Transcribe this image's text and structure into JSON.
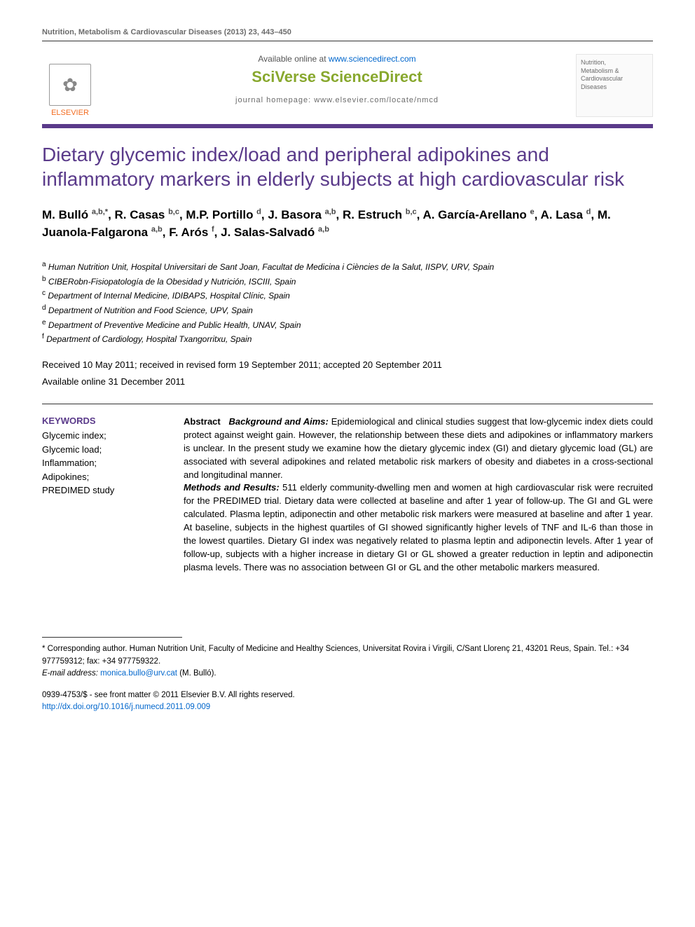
{
  "colors": {
    "accent_purple": "#5a3a8a",
    "accent_green": "#88a82e",
    "accent_orange": "#f36c21",
    "link_blue": "#0066cc",
    "body_text": "#000000",
    "muted_text": "#6b6b6b",
    "rule": "#333333"
  },
  "typography": {
    "body_family": "Trebuchet MS",
    "title_size_pt": 22,
    "author_size_pt": 13,
    "body_size_pt": 10
  },
  "running_header": "Nutrition, Metabolism & Cardiovascular Diseases (2013) 23, 443–450",
  "masthead": {
    "publisher_label": "ELSEVIER",
    "available_text_prefix": "Available online at ",
    "available_url": "www.sciencedirect.com",
    "brand": "SciVerse ScienceDirect",
    "homepage_label": "journal homepage: www.elsevier.com/locate/nmcd",
    "journal_name_lines": "Nutrition,\nMetabolism &\nCardiovascular Diseases"
  },
  "article": {
    "title": "Dietary glycemic index/load and peripheral adipokines and inflammatory markers in elderly subjects at high cardiovascular risk",
    "authors_html": "M. Bulló <sup>a,b,*</sup>, R. Casas <sup>b,c</sup>, M.P. Portillo <sup>d</sup>, J. Basora <sup>a,b</sup>, R. Estruch <sup>b,c</sup>, A. García-Arellano <sup>e</sup>, A. Lasa <sup>d</sup>, M. Juanola-Falgarona <sup>a,b</sup>, F. Arós <sup>f</sup>, J. Salas-Salvadó <sup>a,b</sup>",
    "affiliations": [
      {
        "sup": "a",
        "text": "Human Nutrition Unit, Hospital Universitari de Sant Joan, Facultat de Medicina i Ciències de la Salut, IISPV, URV, Spain"
      },
      {
        "sup": "b",
        "text": "CIBERobn-Fisiopatología de la Obesidad y Nutrición, ISCIII, Spain"
      },
      {
        "sup": "c",
        "text": "Department of Internal Medicine, IDIBAPS, Hospital Clínic, Spain"
      },
      {
        "sup": "d",
        "text": "Department of Nutrition and Food Science, UPV, Spain"
      },
      {
        "sup": "e",
        "text": "Department of Preventive Medicine and Public Health, UNAV, Spain"
      },
      {
        "sup": "f",
        "text": "Department of Cardiology, Hospital Txangorritxu, Spain"
      }
    ],
    "history_line_1": "Received 10 May 2011; received in revised form 19 September 2011; accepted 20 September 2011",
    "history_line_2": "Available online 31 December 2011",
    "keywords_heading": "KEYWORDS",
    "keywords": [
      "Glycemic index;",
      "Glycemic load;",
      "Inflammation;",
      "Adipokines;",
      "PREDIMED study"
    ],
    "abstract": {
      "label": "Abstract",
      "background_title": "Background and Aims:",
      "background_text": " Epidemiological and clinical studies suggest that low-glycemic index diets could protect against weight gain. However, the relationship between these diets and adipokines or inflammatory markers is unclear. In the present study we examine how the dietary glycemic index (GI) and dietary glycemic load (GL) are associated with several adipokines and related metabolic risk markers of obesity and diabetes in a cross-sectional and longitudinal manner.",
      "methods_title": "Methods and Results:",
      "methods_text": " 511 elderly community-dwelling men and women at high cardiovascular risk were recruited for the PREDIMED trial. Dietary data were collected at baseline and after 1 year of follow-up. The GI and GL were calculated. Plasma leptin, adiponectin and other metabolic risk markers were measured at baseline and after 1 year. At baseline, subjects in the highest quartiles of GI showed significantly higher levels of TNF and IL-6 than those in the lowest quartiles. Dietary GI index was negatively related to plasma leptin and adiponectin levels. After 1 year of follow-up, subjects with a higher increase in dietary GI or GL showed a greater reduction in leptin and adiponectin plasma levels. There was no association between GI or GL and the other metabolic markers measured."
    }
  },
  "corresponding": {
    "text": "* Corresponding author. Human Nutrition Unit, Faculty of Medicine and Healthy Sciences, Universitat Rovira i Virgili, C/Sant Llorenç 21, 43201 Reus, Spain. Tel.: +34 977759312; fax: +34 977759322.",
    "email_label": "E-mail address:",
    "email": "monica.bullo@urv.cat",
    "email_author": " (M. Bulló)."
  },
  "copyright": {
    "issn_line": "0939-4753/$ - see front matter © 2011 Elsevier B.V. All rights reserved.",
    "doi": "http://dx.doi.org/10.1016/j.numecd.2011.09.009"
  }
}
